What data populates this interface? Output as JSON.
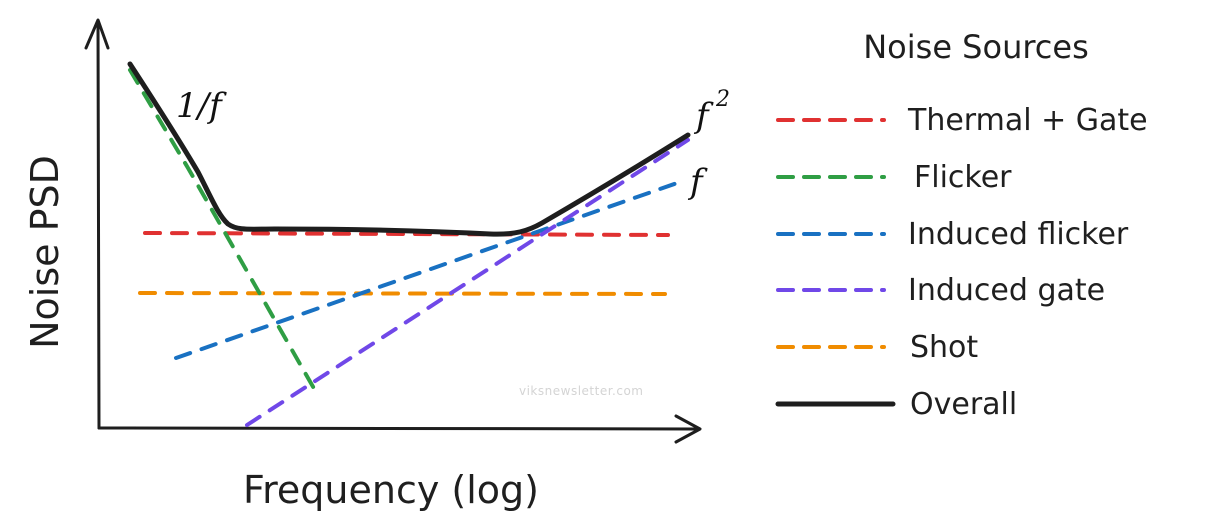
{
  "axes": {
    "y_label": "Noise PSD",
    "x_label": "Frequency (log)"
  },
  "annotations": {
    "inv_f": "1/f",
    "f_squared": "f",
    "f_squared_exp": "2",
    "f": "f"
  },
  "legend": {
    "title": "Noise Sources",
    "items": [
      {
        "label": "Thermal + Gate",
        "color": "#e03131",
        "style": "dashed"
      },
      {
        "label": "Flicker",
        "color": "#2f9e44",
        "style": "dashed"
      },
      {
        "label": "Induced flicker",
        "color": "#1971c2",
        "style": "dashed"
      },
      {
        "label": "Induced gate",
        "color": "#7048e8",
        "style": "dashed"
      },
      {
        "label": "Shot",
        "color": "#f08c00",
        "style": "dashed"
      },
      {
        "label": "Overall",
        "color": "#1e1e1e",
        "style": "solid"
      }
    ]
  },
  "watermark": "viksnewsletter.com"
}
